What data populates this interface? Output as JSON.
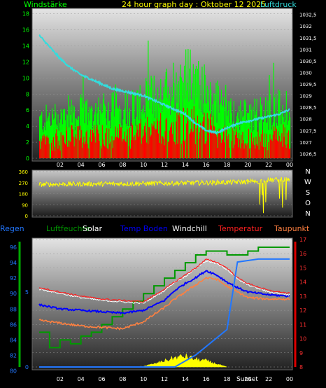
{
  "title": "24 hour graph day : Oktober 12 2025",
  "colors": {
    "wind_gust": "#00ff00",
    "wind_avg": "#ff0000",
    "pressure": "#33dddd",
    "direction": "#ffff00",
    "rain": "#2277ff",
    "humidity": "#009900",
    "solar": "#ffff00",
    "temp_ground": "#0000ff",
    "windchill": "#ffffff",
    "temperature": "#ff2020",
    "dewpoint": "#ff8040"
  },
  "chart_data": [
    {
      "type": "bar",
      "name": "wind",
      "left_label": "Windstärke",
      "right_label": "Luftdruck",
      "x_ticks": [
        "02",
        "04",
        "06",
        "08",
        "10",
        "12",
        "14",
        "16",
        "18",
        "20",
        "22",
        "00"
      ],
      "y_left_ticks": [
        "0",
        "2",
        "4",
        "6",
        "8",
        "10",
        "12",
        "14",
        "16",
        "18"
      ],
      "y_right_ticks": [
        "1026,5",
        "1027",
        "1027,5",
        "1028",
        "1028,5",
        "1029",
        "1029,5",
        "1030",
        "1030,5",
        "1031",
        "1031,5",
        "1032",
        "1032,5"
      ],
      "ylim": [
        0,
        18.5
      ],
      "ylim_right": [
        1026.3,
        1032.7
      ],
      "pressure_points": [
        [
          0,
          1031.6
        ],
        [
          1,
          1031.1
        ],
        [
          2,
          1030.6
        ],
        [
          3,
          1030.2
        ],
        [
          4,
          1029.9
        ],
        [
          5,
          1029.7
        ],
        [
          6,
          1029.5
        ],
        [
          7,
          1029.3
        ],
        [
          8,
          1029.2
        ],
        [
          9,
          1029.1
        ],
        [
          10,
          1029.0
        ],
        [
          11,
          1028.8
        ],
        [
          12,
          1028.6
        ],
        [
          13,
          1028.4
        ],
        [
          14,
          1028.2
        ],
        [
          15,
          1027.8
        ],
        [
          16,
          1027.5
        ],
        [
          17,
          1027.4
        ],
        [
          18,
          1027.6
        ],
        [
          19,
          1027.8
        ],
        [
          20,
          1027.9
        ],
        [
          21,
          1028.0
        ],
        [
          22,
          1028.1
        ],
        [
          23,
          1028.2
        ],
        [
          24,
          1028.4
        ]
      ],
      "gust_level": [
        [
          0,
          5
        ],
        [
          3,
          6
        ],
        [
          6,
          6.5
        ],
        [
          9,
          7
        ],
        [
          12,
          9
        ],
        [
          14,
          11
        ],
        [
          15,
          10
        ],
        [
          16,
          9
        ],
        [
          18,
          6
        ],
        [
          21,
          6
        ],
        [
          24,
          7
        ]
      ],
      "avg_level": [
        [
          0,
          2.5
        ],
        [
          3,
          3.5
        ],
        [
          6,
          3.5
        ],
        [
          9,
          3.8
        ],
        [
          12,
          5
        ],
        [
          14,
          6
        ],
        [
          16,
          5
        ],
        [
          18,
          3.5
        ],
        [
          21,
          3
        ],
        [
          24,
          3.8
        ]
      ]
    },
    {
      "type": "scatter",
      "name": "wind_direction",
      "x_ticks": [
        "02",
        "04",
        "06",
        "08",
        "10",
        "12",
        "14",
        "16",
        "18",
        "20",
        "22",
        "00"
      ],
      "y_ticks": [
        "0",
        "90",
        "180",
        "270",
        "360"
      ],
      "right_labels": [
        "N",
        "W",
        "S",
        "O",
        "N"
      ],
      "ylim": [
        0,
        360
      ],
      "direction_points": [
        [
          0,
          255
        ],
        [
          3,
          258
        ],
        [
          6,
          260
        ],
        [
          9,
          262
        ],
        [
          12,
          264
        ],
        [
          15,
          268
        ],
        [
          18,
          272
        ],
        [
          21,
          280
        ],
        [
          22,
          290
        ],
        [
          24,
          300
        ]
      ]
    },
    {
      "type": "line",
      "name": "temperature",
      "legend": [
        "Regen",
        "Luftfeuchte",
        "Solar",
        "Temp Boden",
        "Windchill",
        "Temperatur",
        "Taupunkt"
      ],
      "x_ticks": [
        "02",
        "04",
        "06",
        "08",
        "10",
        "12",
        "14",
        "16",
        "18",
        "20",
        "22",
        "00"
      ],
      "sunset_label": "Sunset",
      "y_left_ticks": [
        "80",
        "82",
        "84",
        "86",
        "88",
        "90",
        "92",
        "94",
        "96"
      ],
      "y_right_ticks": [
        "8",
        "9",
        "10",
        "11",
        "12",
        "13",
        "14",
        "15",
        "16",
        "17"
      ],
      "y_rain_ticks": [
        "0",
        "5"
      ],
      "ylim_left": [
        80.5,
        97
      ],
      "ylim_right": [
        8,
        17
      ],
      "temperature": [
        [
          0,
          13.6
        ],
        [
          2,
          13.3
        ],
        [
          4,
          13.0
        ],
        [
          6,
          12.8
        ],
        [
          8,
          12.7
        ],
        [
          10,
          12.6
        ],
        [
          12,
          13.5
        ],
        [
          13,
          14.0
        ],
        [
          14,
          14.5
        ],
        [
          15,
          15.0
        ],
        [
          16,
          15.6
        ],
        [
          17,
          15.4
        ],
        [
          18,
          15.0
        ],
        [
          19,
          14.3
        ],
        [
          20,
          13.9
        ],
        [
          22,
          13.4
        ],
        [
          24,
          13.2
        ]
      ],
      "windchill": [
        [
          0,
          13.5
        ],
        [
          2,
          13.2
        ],
        [
          4,
          12.9
        ],
        [
          6,
          12.7
        ],
        [
          8,
          12.6
        ],
        [
          10,
          12.5
        ],
        [
          12,
          13.4
        ],
        [
          13,
          14.0
        ],
        [
          14,
          14.4
        ],
        [
          15,
          15.0
        ],
        [
          16,
          15.5
        ],
        [
          17,
          15.3
        ],
        [
          18,
          14.9
        ],
        [
          19,
          14.2
        ],
        [
          20,
          13.8
        ],
        [
          22,
          13.3
        ],
        [
          24,
          13.1
        ]
      ],
      "temp_ground": [
        [
          0,
          12.4
        ],
        [
          2,
          12.1
        ],
        [
          4,
          12.0
        ],
        [
          6,
          11.9
        ],
        [
          8,
          11.8
        ],
        [
          10,
          12.0
        ],
        [
          12,
          12.7
        ],
        [
          13,
          13.4
        ],
        [
          14,
          13.9
        ],
        [
          15,
          14.3
        ],
        [
          16,
          14.8
        ],
        [
          17,
          14.5
        ],
        [
          18,
          14.0
        ],
        [
          19,
          13.6
        ],
        [
          20,
          13.3
        ],
        [
          22,
          13.1
        ],
        [
          24,
          13.0
        ]
      ],
      "dewpoint": [
        [
          0,
          11.3
        ],
        [
          2,
          11.1
        ],
        [
          4,
          10.9
        ],
        [
          6,
          10.8
        ],
        [
          8,
          10.7
        ],
        [
          10,
          11.2
        ],
        [
          12,
          12.2
        ],
        [
          13,
          12.8
        ],
        [
          14,
          13.3
        ],
        [
          15,
          13.8
        ],
        [
          16,
          14.3
        ],
        [
          17,
          14.2
        ],
        [
          18,
          13.7
        ],
        [
          19,
          13.3
        ],
        [
          20,
          12.9
        ],
        [
          22,
          12.8
        ],
        [
          24,
          12.8
        ]
      ],
      "humidity": [
        [
          0,
          85
        ],
        [
          1,
          83
        ],
        [
          2,
          84
        ],
        [
          3,
          83.5
        ],
        [
          4,
          84.5
        ],
        [
          5,
          85
        ],
        [
          6,
          86
        ],
        [
          7,
          87
        ],
        [
          8,
          88
        ],
        [
          9,
          89
        ],
        [
          10,
          90
        ],
        [
          11,
          91
        ],
        [
          12,
          92
        ],
        [
          13,
          93
        ],
        [
          14,
          94
        ],
        [
          15,
          95
        ],
        [
          16,
          95.5
        ],
        [
          17,
          95.5
        ],
        [
          18,
          95
        ],
        [
          19,
          95
        ],
        [
          20,
          95.5
        ],
        [
          21,
          96
        ],
        [
          22,
          96
        ],
        [
          23,
          96
        ],
        [
          24,
          96
        ]
      ],
      "rain": [
        [
          0,
          0
        ],
        [
          13,
          0
        ],
        [
          15,
          0.8
        ],
        [
          18,
          2.5
        ],
        [
          19,
          7
        ],
        [
          21,
          7.2
        ],
        [
          24,
          7.2
        ]
      ],
      "solar": [
        [
          9,
          0
        ],
        [
          10,
          0.5
        ],
        [
          11,
          2
        ],
        [
          12,
          4
        ],
        [
          13,
          6
        ],
        [
          14,
          7
        ],
        [
          15,
          5
        ],
        [
          16,
          4
        ],
        [
          17,
          2
        ],
        [
          18,
          0
        ]
      ]
    }
  ]
}
